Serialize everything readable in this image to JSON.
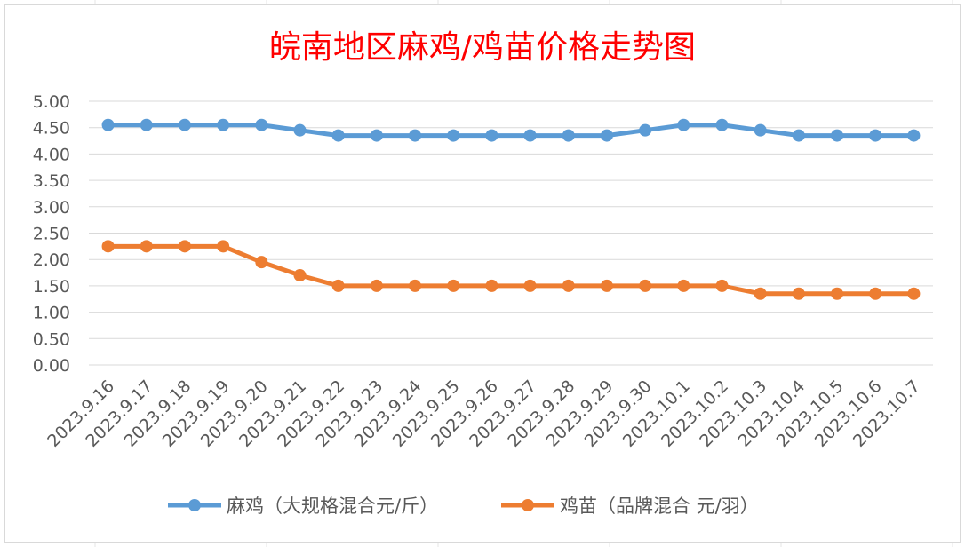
{
  "chart_data": {
    "type": "line",
    "title": "皖南地区麻鸡/鸡苗价格走势图",
    "categories": [
      "2023.9.16",
      "2023.9.17",
      "2023.9.18",
      "2023.9.19",
      "2023.9.20",
      "2023.9.21",
      "2023.9.22",
      "2023.9.23",
      "2023.9.24",
      "2023.9.25",
      "2023.9.26",
      "2023.9.27",
      "2023.9.28",
      "2023.9.29",
      "2023.9.30",
      "2023.10.1",
      "2023.10.2",
      "2023.10.3",
      "2023.10.4",
      "2023.10.5",
      "2023.10.6",
      "2023.10.7"
    ],
    "series": [
      {
        "name": "麻鸡（大规格混合元/斤）",
        "color": "#5b9bd5",
        "values": [
          4.55,
          4.55,
          4.55,
          4.55,
          4.55,
          4.45,
          4.35,
          4.35,
          4.35,
          4.35,
          4.35,
          4.35,
          4.35,
          4.35,
          4.45,
          4.55,
          4.55,
          4.45,
          4.35,
          4.35,
          4.35,
          4.35
        ]
      },
      {
        "name": "鸡苗（品牌混合 元/羽）",
        "color": "#ed7d31",
        "values": [
          2.25,
          2.25,
          2.25,
          2.25,
          1.95,
          1.7,
          1.5,
          1.5,
          1.5,
          1.5,
          1.5,
          1.5,
          1.5,
          1.5,
          1.5,
          1.5,
          1.5,
          1.35,
          1.35,
          1.35,
          1.35,
          1.35
        ]
      }
    ],
    "ylim": [
      0,
      5
    ],
    "yticks": [
      "0.00",
      "0.50",
      "1.00",
      "1.50",
      "2.00",
      "2.50",
      "3.00",
      "3.50",
      "4.00",
      "4.50",
      "5.00"
    ],
    "grid": true,
    "legend": "bottom",
    "title_color": "#ff0000"
  }
}
